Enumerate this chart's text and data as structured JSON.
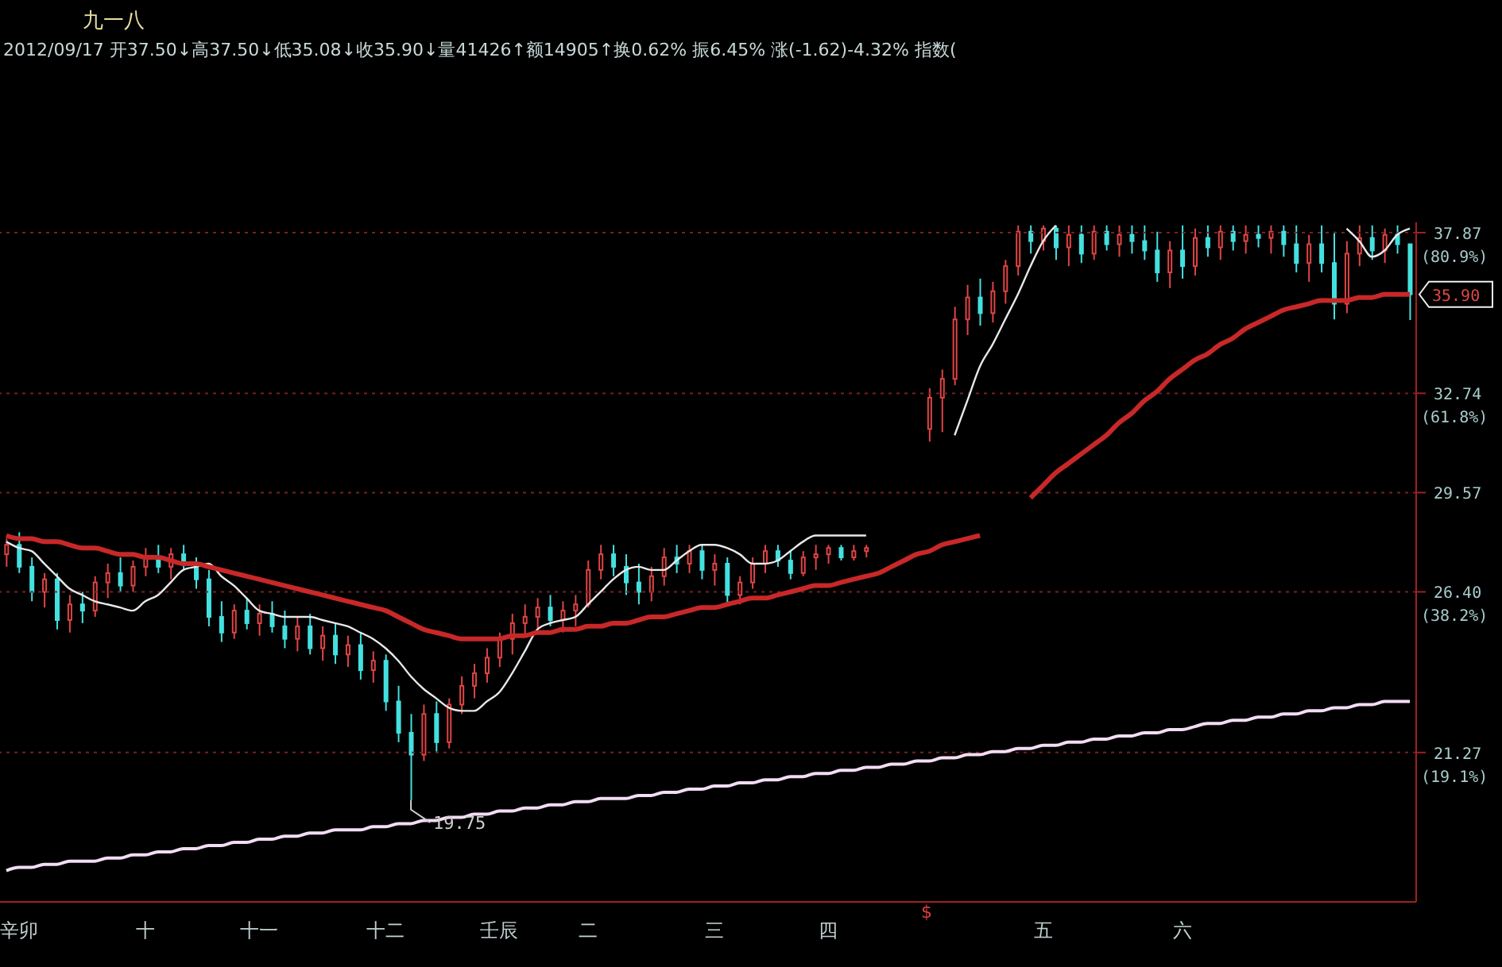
{
  "chart_data": {
    "type": "candlestick",
    "title": "九一八",
    "subtitle": "2012/09/17 开37.50↓高37.50↓低35.08↓收35.90↓量41426↑额14905↑换0.62% 振6.45% 涨(-1.62)-4.32% 指数(",
    "categories": [
      null,
      "辛卯",
      null,
      null,
      null,
      null,
      null,
      null,
      null,
      null,
      null,
      "十",
      null,
      null,
      null,
      null,
      null,
      null,
      null,
      null,
      "十一",
      null,
      null,
      null,
      null,
      null,
      null,
      null,
      null,
      null,
      "十二",
      null,
      null,
      null,
      null,
      null,
      null,
      null,
      null,
      "壬辰",
      null,
      null,
      null,
      null,
      null,
      null,
      "二",
      null,
      null,
      null,
      null,
      null,
      null,
      null,
      null,
      null,
      "三",
      null,
      null,
      null,
      null,
      null,
      null,
      null,
      null,
      "四",
      null,
      null,
      null,
      null,
      null,
      null,
      null,
      null,
      null,
      null,
      null,
      null,
      null,
      null,
      null,
      null,
      "五",
      null,
      null,
      null,
      null,
      null,
      null,
      null,
      null,
      null,
      null,
      "六",
      null,
      null,
      null,
      null,
      null,
      null,
      null,
      null,
      null,
      null,
      null,
      null,
      null,
      null,
      null,
      null,
      null,
      null
    ],
    "series": [
      {
        "colors": [
          "#e04444",
          "#44e0e0",
          "#44e0e0",
          "#e04444",
          "#44e0e0",
          "#e04444",
          "#44e0e0",
          "#e04444",
          "#e04444",
          "#44e0e0",
          "#e04444",
          "#e04444",
          "#44e0e0",
          "#e04444",
          "#44e0e0",
          "#44e0e0",
          "#44e0e0",
          "#44e0e0",
          "#e04444",
          "#44e0e0",
          "#e04444",
          "#44e0e0",
          "#44e0e0",
          "#e04444",
          "#44e0e0",
          "#e04444",
          "#44e0e0",
          "#e04444",
          "#44e0e0",
          "#e04444",
          "#44e0e0",
          "#44e0e0",
          "#44e0e0",
          "#e04444",
          "#44e0e0",
          "#e04444",
          "#e04444",
          "#e04444",
          "#e04444",
          "#e04444",
          "#e04444",
          "#e04444",
          "#e04444",
          "#44e0e0",
          "#e04444",
          "#e04444",
          "#e04444",
          "#e04444",
          "#44e0e0",
          "#44e0e0",
          "#44e0e0",
          "#e04444",
          "#e04444",
          "#44e0e0",
          "#e04444",
          "#44e0e0",
          "#e04444",
          "#44e0e0",
          "#e04444",
          "#e04444",
          "#e04444",
          "#44e0e0",
          "#44e0e0",
          "#e04444",
          "#e04444",
          "#e04444",
          "#44e0e0",
          "#e04444",
          "#e04444",
          null,
          null,
          null,
          null,
          "#e04444",
          "#e04444",
          "#e04444",
          "#e04444",
          "#44e0e0",
          "#e04444",
          "#e04444",
          "#e04444",
          "#44e0e0",
          "#e04444",
          "#44e0e0",
          "#e04444",
          "#44e0e0",
          "#e04444",
          "#44e0e0",
          "#e04444",
          "#44e0e0",
          "#44e0e0",
          "#44e0e0",
          "#e04444",
          "#44e0e0",
          "#e04444",
          "#44e0e0",
          "#e04444",
          "#44e0e0",
          "#e04444",
          "#44e0e0",
          "#e04444",
          "#44e0e0",
          "#44e0e0",
          "#e04444",
          "#44e0e0",
          "#44e0e0",
          "#e04444",
          "#e04444",
          "#44e0e0",
          "#e04444",
          "#44e0e0",
          "#44e0e0"
        ],
        "ohlc": [
          [
            27.6,
            28.1,
            27.2,
            27.9
          ],
          [
            27.9,
            28.3,
            27.0,
            27.2
          ],
          [
            27.2,
            27.5,
            26.1,
            26.4
          ],
          [
            26.4,
            27.0,
            25.9,
            26.8
          ],
          [
            26.8,
            27.0,
            25.2,
            25.5
          ],
          [
            25.5,
            26.3,
            25.1,
            26.0
          ],
          [
            26.0,
            26.4,
            25.4,
            25.8
          ],
          [
            25.8,
            26.9,
            25.6,
            26.7
          ],
          [
            26.7,
            27.3,
            26.2,
            27.0
          ],
          [
            27.0,
            27.5,
            26.4,
            26.6
          ],
          [
            26.6,
            27.4,
            26.4,
            27.2
          ],
          [
            27.2,
            27.8,
            26.9,
            27.5
          ],
          [
            27.5,
            27.9,
            27.0,
            27.2
          ],
          [
            27.2,
            27.8,
            26.8,
            27.6
          ],
          [
            27.6,
            27.9,
            27.1,
            27.3
          ],
          [
            27.3,
            27.5,
            26.5,
            26.8
          ],
          [
            26.8,
            27.1,
            25.3,
            25.6
          ],
          [
            25.6,
            26.1,
            24.8,
            25.1
          ],
          [
            25.1,
            26.0,
            24.9,
            25.8
          ],
          [
            25.8,
            26.2,
            25.2,
            25.4
          ],
          [
            25.4,
            26.0,
            25.0,
            25.7
          ],
          [
            25.7,
            26.1,
            25.1,
            25.3
          ],
          [
            25.3,
            25.8,
            24.6,
            24.9
          ],
          [
            24.9,
            25.6,
            24.5,
            25.3
          ],
          [
            25.3,
            25.7,
            24.4,
            24.6
          ],
          [
            24.6,
            25.3,
            24.2,
            25.0
          ],
          [
            25.0,
            25.4,
            24.1,
            24.4
          ],
          [
            24.4,
            25.0,
            24.0,
            24.7
          ],
          [
            24.7,
            25.1,
            23.6,
            23.9
          ],
          [
            23.9,
            24.5,
            23.5,
            24.2
          ],
          [
            24.2,
            24.4,
            22.6,
            22.9
          ],
          [
            22.9,
            23.4,
            21.6,
            21.9
          ],
          [
            21.9,
            22.5,
            19.75,
            21.2
          ],
          [
            21.2,
            22.8,
            21.0,
            22.5
          ],
          [
            22.5,
            22.9,
            21.3,
            21.6
          ],
          [
            21.6,
            23.0,
            21.4,
            22.8
          ],
          [
            22.8,
            23.7,
            22.5,
            23.4
          ],
          [
            23.4,
            24.1,
            23.0,
            23.8
          ],
          [
            23.8,
            24.6,
            23.5,
            24.3
          ],
          [
            24.3,
            25.1,
            24.0,
            24.9
          ],
          [
            24.9,
            25.7,
            24.4,
            25.4
          ],
          [
            25.4,
            26.0,
            25.0,
            25.6
          ],
          [
            25.6,
            26.2,
            25.2,
            25.9
          ],
          [
            25.9,
            26.3,
            25.3,
            25.5
          ],
          [
            25.5,
            26.1,
            25.1,
            25.8
          ],
          [
            25.8,
            26.3,
            25.3,
            26.0
          ],
          [
            26.0,
            27.4,
            25.9,
            27.1
          ],
          [
            27.1,
            27.9,
            26.8,
            27.6
          ],
          [
            27.6,
            27.9,
            26.9,
            27.2
          ],
          [
            27.2,
            27.6,
            26.3,
            26.7
          ],
          [
            26.7,
            27.3,
            26.0,
            26.4
          ],
          [
            26.4,
            27.2,
            26.1,
            26.9
          ],
          [
            26.9,
            27.8,
            26.6,
            27.5
          ],
          [
            27.5,
            27.9,
            27.0,
            27.3
          ],
          [
            27.3,
            27.9,
            27.0,
            27.7
          ],
          [
            27.7,
            27.9,
            26.8,
            27.1
          ],
          [
            27.1,
            27.6,
            26.6,
            27.3
          ],
          [
            27.3,
            27.5,
            26.0,
            26.3
          ],
          [
            26.3,
            26.9,
            26.0,
            26.7
          ],
          [
            26.7,
            27.5,
            26.5,
            27.3
          ],
          [
            27.3,
            27.9,
            27.0,
            27.7
          ],
          [
            27.7,
            27.9,
            27.2,
            27.4
          ],
          [
            27.4,
            27.7,
            26.8,
            27.0
          ],
          [
            27.0,
            27.7,
            26.9,
            27.5
          ],
          [
            27.5,
            27.9,
            27.1,
            27.6
          ],
          [
            27.6,
            27.9,
            27.3,
            27.8
          ],
          [
            27.8,
            27.9,
            27.4,
            27.5
          ],
          [
            27.5,
            27.9,
            27.4,
            27.7
          ],
          [
            27.7,
            27.9,
            27.5,
            27.8
          ],
          null,
          null,
          null,
          null,
          [
            31.6,
            32.9,
            31.2,
            32.6
          ],
          [
            32.6,
            33.5,
            31.5,
            33.2
          ],
          [
            33.2,
            35.5,
            33.0,
            35.1
          ],
          [
            35.1,
            36.2,
            34.6,
            35.8
          ],
          [
            35.8,
            36.4,
            34.9,
            35.3
          ],
          [
            35.3,
            36.3,
            35.0,
            36.0
          ],
          [
            36.0,
            37.0,
            35.6,
            36.8
          ],
          [
            36.8,
            38.1,
            36.5,
            37.9
          ],
          [
            37.9,
            38.1,
            37.2,
            37.6
          ],
          [
            37.6,
            38.1,
            37.3,
            38.0
          ],
          [
            38.0,
            38.1,
            37.0,
            37.4
          ],
          [
            37.4,
            38.1,
            36.8,
            37.8
          ],
          [
            37.8,
            38.1,
            36.9,
            37.2
          ],
          [
            37.2,
            38.1,
            37.0,
            37.9
          ],
          [
            37.9,
            38.1,
            37.3,
            37.5
          ],
          [
            37.5,
            38.1,
            37.1,
            37.8
          ],
          [
            37.8,
            38.1,
            37.2,
            37.6
          ],
          [
            37.6,
            38.1,
            37.0,
            37.3
          ],
          [
            37.3,
            37.9,
            36.3,
            36.6
          ],
          [
            36.6,
            37.6,
            36.1,
            37.3
          ],
          [
            37.3,
            38.1,
            36.4,
            36.8
          ],
          [
            36.8,
            38.0,
            36.5,
            37.7
          ],
          [
            37.7,
            38.1,
            37.1,
            37.4
          ],
          [
            37.4,
            38.1,
            37.0,
            37.9
          ],
          [
            37.9,
            38.1,
            37.3,
            37.6
          ],
          [
            37.6,
            38.1,
            37.2,
            37.8
          ],
          [
            37.8,
            38.1,
            37.4,
            37.7
          ],
          [
            37.7,
            38.1,
            37.2,
            37.9
          ],
          [
            37.9,
            38.1,
            37.1,
            37.5
          ],
          [
            37.5,
            38.1,
            36.6,
            36.9
          ],
          [
            36.9,
            37.8,
            36.3,
            37.5
          ],
          [
            37.5,
            38.1,
            36.6,
            36.9
          ],
          [
            36.9,
            37.9,
            35.1,
            35.6
          ],
          [
            35.6,
            37.6,
            35.3,
            37.2
          ],
          [
            37.2,
            38.1,
            36.8,
            37.7
          ],
          [
            37.7,
            38.1,
            37.0,
            37.3
          ],
          [
            37.3,
            38.0,
            36.9,
            37.8
          ],
          [
            37.8,
            38.1,
            37.2,
            37.5
          ],
          [
            37.5,
            37.5,
            35.08,
            35.9
          ]
        ]
      },
      {
        "type": "line",
        "color": "#e8e8e8",
        "values": [
          28.0,
          27.8,
          27.7,
          27.3,
          26.9,
          26.5,
          26.3,
          26.1,
          26.0,
          25.9,
          25.8,
          26.1,
          26.3,
          26.7,
          27.1,
          27.2,
          27.3,
          26.9,
          26.6,
          26.2,
          25.8,
          25.7,
          25.6,
          25.6,
          25.6,
          25.5,
          25.4,
          25.3,
          25.1,
          24.9,
          24.6,
          24.2,
          23.7,
          23.3,
          23.0,
          22.7,
          22.6,
          22.6,
          22.9,
          23.2,
          23.8,
          24.5,
          25.2,
          25.4,
          25.5,
          25.6,
          26.0,
          26.4,
          26.8,
          27.1,
          27.2,
          27.1,
          27.1,
          27.4,
          27.7,
          27.9,
          27.9,
          27.8,
          27.6,
          27.3,
          27.3,
          27.4,
          27.7,
          28.0,
          28.2,
          28.2,
          28.2,
          28.2,
          28.2,
          null,
          null,
          null,
          null,
          null,
          null,
          31.4,
          32.5,
          33.6,
          34.3,
          35.1,
          35.9,
          36.8,
          37.6,
          38.1,
          null,
          null,
          null,
          null,
          null,
          null,
          null,
          null,
          null,
          null,
          null,
          null,
          null,
          null,
          null,
          null,
          null,
          null,
          null,
          null,
          null,
          null,
          38.0,
          37.6,
          37.1,
          37.3,
          37.8,
          38.0
        ]
      },
      {
        "type": "line",
        "color": "#c82828",
        "values": [
          28.2,
          28.1,
          28.1,
          28.0,
          28.0,
          27.9,
          27.8,
          27.8,
          27.7,
          27.6,
          27.6,
          27.5,
          27.5,
          27.4,
          27.3,
          27.3,
          27.2,
          27.1,
          27.0,
          26.9,
          26.8,
          26.7,
          26.6,
          26.5,
          26.4,
          26.3,
          26.2,
          26.1,
          26.0,
          25.9,
          25.8,
          25.6,
          25.4,
          25.2,
          25.1,
          25.0,
          24.9,
          24.9,
          24.9,
          24.9,
          25.0,
          25.0,
          25.1,
          25.1,
          25.2,
          25.2,
          25.3,
          25.3,
          25.4,
          25.4,
          25.5,
          25.6,
          25.6,
          25.7,
          25.8,
          25.9,
          25.9,
          26.0,
          26.1,
          26.2,
          26.2,
          26.3,
          26.4,
          26.5,
          26.6,
          26.6,
          26.7,
          26.8,
          26.9,
          27.0,
          27.2,
          27.4,
          27.6,
          27.7,
          27.9,
          28.0,
          28.1,
          28.2,
          null,
          null,
          null,
          29.4,
          29.8,
          30.2,
          30.5,
          30.8,
          31.1,
          31.4,
          31.8,
          32.1,
          32.5,
          32.8,
          33.2,
          33.5,
          33.8,
          34.0,
          34.3,
          34.5,
          34.8,
          35.0,
          35.2,
          35.4,
          35.5,
          35.6,
          35.7,
          35.7,
          35.7,
          35.8,
          35.8,
          35.9,
          35.9,
          35.9
        ]
      },
      {
        "type": "line",
        "color": "#f4dcf4",
        "values": [
          17.5,
          17.6,
          17.6,
          17.7,
          17.7,
          17.8,
          17.8,
          17.8,
          17.9,
          17.9,
          18.0,
          18.0,
          18.1,
          18.1,
          18.2,
          18.2,
          18.3,
          18.3,
          18.4,
          18.4,
          18.5,
          18.5,
          18.6,
          18.6,
          18.7,
          18.7,
          18.8,
          18.8,
          18.8,
          18.9,
          18.9,
          19.0,
          19.0,
          19.1,
          19.1,
          19.2,
          19.2,
          19.3,
          19.3,
          19.4,
          19.4,
          19.5,
          19.5,
          19.6,
          19.6,
          19.7,
          19.7,
          19.8,
          19.8,
          19.8,
          19.9,
          19.9,
          20.0,
          20.0,
          20.1,
          20.1,
          20.2,
          20.2,
          20.3,
          20.3,
          20.4,
          20.4,
          20.5,
          20.5,
          20.6,
          20.6,
          20.7,
          20.7,
          20.8,
          20.8,
          20.9,
          20.9,
          21.0,
          21.0,
          21.1,
          21.1,
          21.2,
          21.2,
          21.3,
          21.3,
          21.4,
          21.4,
          21.5,
          21.5,
          21.6,
          21.6,
          21.7,
          21.7,
          21.8,
          21.8,
          21.9,
          21.9,
          22.0,
          22.0,
          22.1,
          22.2,
          22.2,
          22.3,
          22.3,
          22.4,
          22.4,
          22.5,
          22.5,
          22.6,
          22.6,
          22.7,
          22.7,
          22.8,
          22.8,
          22.9,
          22.9,
          22.9
        ]
      }
    ],
    "ylim": [
      16.5,
      38.2
    ],
    "yticks": [
      37.87,
      32.74,
      29.57,
      {
        "value": 26.4,
        "label": "26.40"
      },
      21.27
    ],
    "ref_lines": [
      {
        "axis": "y",
        "value": 37.87,
        "color": "#7a2020",
        "line_style": "dotted"
      },
      {
        "axis": "y",
        "value": 32.74,
        "color": "#7a2020",
        "line_style": "dotted"
      },
      {
        "axis": "y",
        "value": 29.57,
        "color": "#7a2020",
        "line_style": "dotted"
      },
      {
        "axis": "y",
        "value": 26.4,
        "color": "#7a2020",
        "line_style": "dotted"
      },
      {
        "axis": "y",
        "value": 21.27,
        "color": "#7a2020",
        "line_style": "dotted"
      }
    ],
    "y2lim": [
      4.08,
      84.87
    ],
    "y2ticks": [
      {
        "value": 80.9,
        "label": "(80.9%)"
      },
      {
        "value": 61.8,
        "label": "(61.8%)"
      },
      {
        "value": 38.2,
        "label": "(38.2%)"
      },
      {
        "value": 19.1,
        "label": "(19.1%)"
      }
    ],
    "annotations": [
      "19.75",
      "35.90",
      "$"
    ]
  }
}
